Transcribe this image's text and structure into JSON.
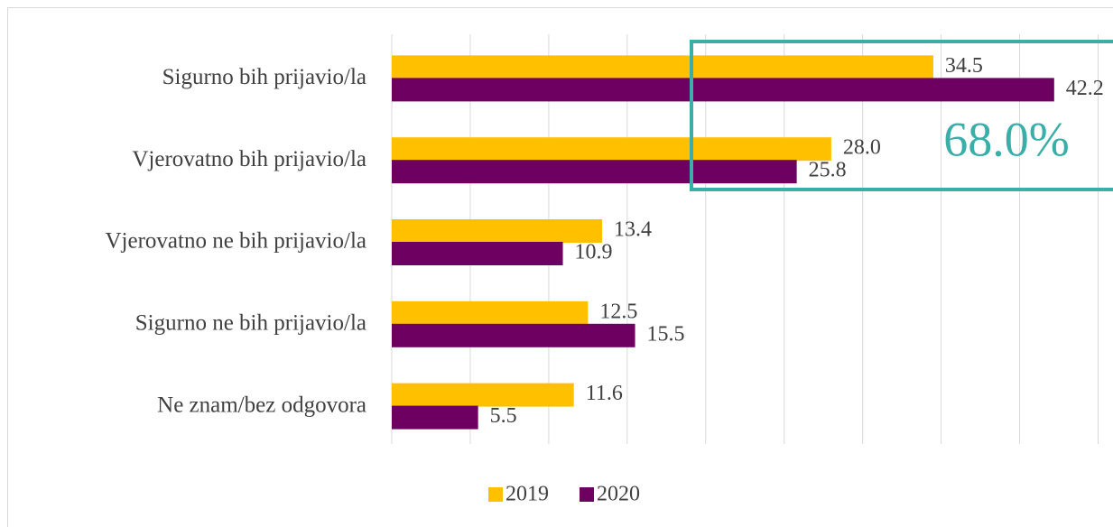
{
  "chart_data": {
    "type": "bar",
    "orientation": "horizontal",
    "categories": [
      "Sigurno bih prijavio/la",
      "Vjerovatno bih prijavio/la",
      "Vjerovatno ne bih prijavio/la",
      "Sigurno ne bih prijavio/la",
      "Ne znam/bez odgovora"
    ],
    "series": [
      {
        "name": "2019",
        "color": "#ffc000",
        "values": [
          34.5,
          28.0,
          13.4,
          12.5,
          11.6
        ],
        "value_labels": [
          "34.5",
          "28.0",
          "13.4",
          "12.5",
          "11.6"
        ]
      },
      {
        "name": "2020",
        "color": "#6e0062",
        "values": [
          42.2,
          25.8,
          10.9,
          15.5,
          5.5
        ],
        "value_labels": [
          "42.2",
          "25.8",
          "10.9",
          "15.5",
          "5.5"
        ]
      }
    ],
    "xlim": [
      0,
      45
    ],
    "xticks": [
      0,
      5,
      10,
      15,
      20,
      25,
      30,
      35,
      40,
      45
    ],
    "grid": true,
    "legend": "bottom",
    "annotation": {
      "text": "68.0%",
      "color": "#3aaea8"
    }
  }
}
